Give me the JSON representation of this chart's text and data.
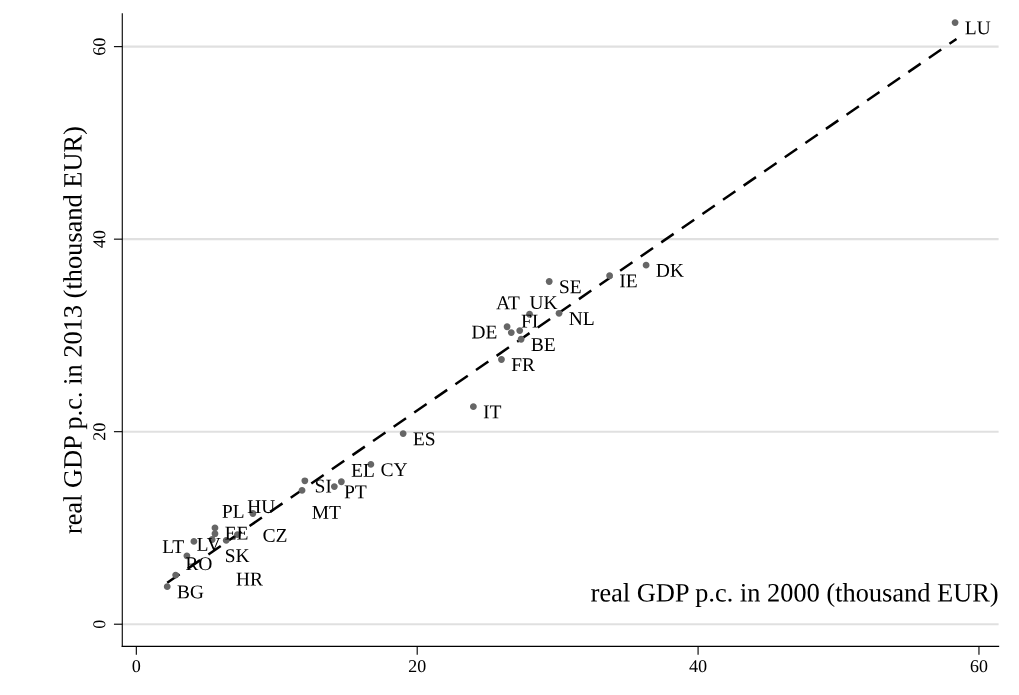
{
  "chart_data": {
    "type": "scatter",
    "xlabel": "real GDP p.c. in 2000 (thousand EUR)",
    "ylabel": "real GDP p.c. in 2013 (thousand EUR)",
    "xlim": [
      -1.0,
      61.4
    ],
    "ylim": [
      -2.3,
      63.4
    ],
    "xticks": [
      0,
      20,
      40,
      60
    ],
    "yticks": [
      0,
      20,
      40,
      60
    ],
    "grid": "y",
    "series": [
      {
        "color": "#666666",
        "marker": "circle",
        "x": [
          2.2,
          2.8,
          3.6,
          4.1,
          5.6,
          5.6,
          5.4,
          7.2,
          6.4,
          8.3,
          12.0,
          11.8,
          14.1,
          14.6,
          16.7,
          19.0,
          24.0,
          26.0,
          27.4,
          26.7,
          26.4,
          27.3,
          28.0,
          30.1,
          29.4,
          33.7,
          36.3,
          58.3
        ],
        "values": [
          3.9,
          5.1,
          7.1,
          8.6,
          10.0,
          9.4,
          8.8,
          9.3,
          8.7,
          11.5,
          14.9,
          13.9,
          14.3,
          14.8,
          16.6,
          19.8,
          22.6,
          27.5,
          29.6,
          30.3,
          30.9,
          30.5,
          32.2,
          32.3,
          35.6,
          36.2,
          37.3,
          62.5
        ]
      },
      {
        "type": "line",
        "color": "#000000",
        "line_style": "dashed",
        "x": [
          2.2,
          58.4
        ],
        "values": [
          4.3,
          60.8
        ]
      }
    ],
    "annotations": [
      {
        "text": "BG",
        "x": 2.2,
        "y": 3.9
      },
      {
        "text": "RO",
        "x": 2.8,
        "y": 5.1
      },
      {
        "text": "LV",
        "x": 3.6,
        "y": 7.1
      },
      {
        "text": "LT",
        "x": 4.1,
        "y": 8.6
      },
      {
        "text": "EE",
        "x": 5.6,
        "y": 10.0
      },
      {
        "text": "SK",
        "x": 5.6,
        "y": 9.4
      },
      {
        "text": "PL",
        "x": 5.4,
        "y": 8.8
      },
      {
        "text": "HU",
        "x": 7.2,
        "y": 9.3
      },
      {
        "text": "HR",
        "x": 6.4,
        "y": 8.7
      },
      {
        "text": "CZ",
        "x": 8.3,
        "y": 11.5
      },
      {
        "text": "SI",
        "x": 12.0,
        "y": 14.9
      },
      {
        "text": "MT",
        "x": 11.8,
        "y": 13.9
      },
      {
        "text": "PT",
        "x": 14.1,
        "y": 14.3
      },
      {
        "text": "EL",
        "x": 14.6,
        "y": 14.8
      },
      {
        "text": "CY",
        "x": 16.7,
        "y": 16.6
      },
      {
        "text": "ES",
        "x": 19.0,
        "y": 19.8
      },
      {
        "text": "IT",
        "x": 24.0,
        "y": 22.6
      },
      {
        "text": "FR",
        "x": 26.0,
        "y": 27.5
      },
      {
        "text": "BE",
        "x": 27.4,
        "y": 29.6
      },
      {
        "text": "FI",
        "x": 26.7,
        "y": 30.3
      },
      {
        "text": "DE",
        "x": 26.4,
        "y": 30.9
      },
      {
        "text": "UK",
        "x": 27.3,
        "y": 30.5
      },
      {
        "text": "AT",
        "x": 28.0,
        "y": 32.2
      },
      {
        "text": "NL",
        "x": 30.1,
        "y": 32.3
      },
      {
        "text": "SE",
        "x": 29.4,
        "y": 35.6
      },
      {
        "text": "IE",
        "x": 33.7,
        "y": 36.2
      },
      {
        "text": "DK",
        "x": 36.3,
        "y": 37.3
      },
      {
        "text": "LU",
        "x": 58.3,
        "y": 62.5
      }
    ]
  }
}
